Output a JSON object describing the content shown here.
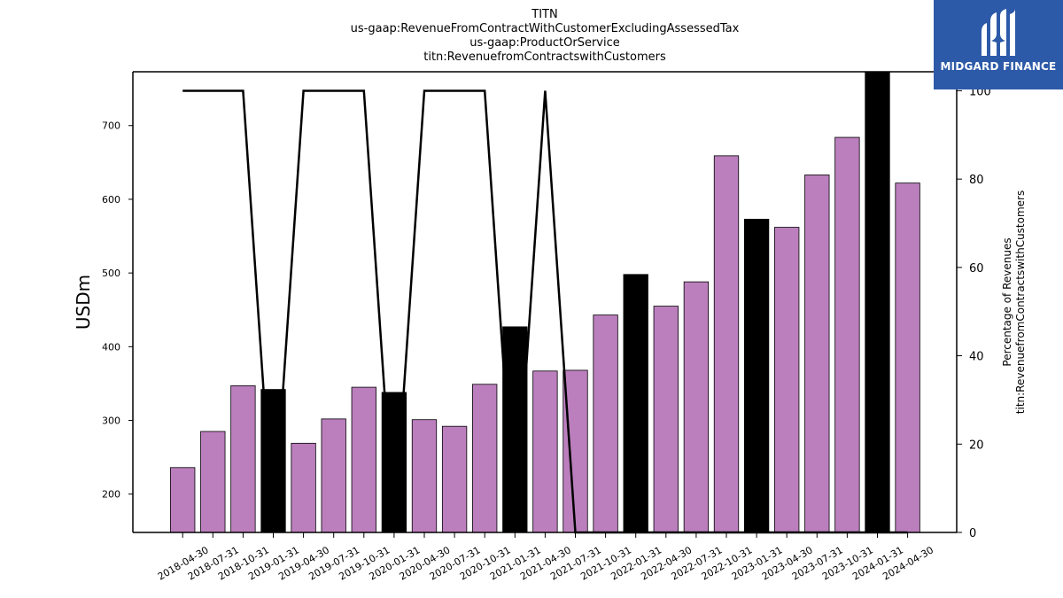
{
  "chart_data": {
    "type": "bar",
    "title_lines": [
      "TITN",
      "us-gaap:RevenueFromContractWithCustomerExcludingAssessedTax",
      "us-gaap:ProductOrService",
      "titn:RevenuefromContractswithCustomers"
    ],
    "ylabel": "USDm",
    "ylabel_right": [
      "Percentage of Revenues",
      "titn:RevenuefromContractswithCustomers"
    ],
    "ylim": [
      148,
      773
    ],
    "yticks": [
      200,
      300,
      400,
      500,
      600,
      700
    ],
    "ylim_right": [
      0,
      104.3
    ],
    "yticks_right": [
      0,
      20,
      40,
      60,
      80,
      100
    ],
    "categories": [
      "2018-04-30",
      "2018-07-31",
      "2018-10-31",
      "2019-01-31",
      "2019-04-30",
      "2019-07-31",
      "2019-10-31",
      "2020-01-31",
      "2020-04-30",
      "2020-07-31",
      "2020-10-31",
      "2021-01-31",
      "2021-04-30",
      "2021-07-31",
      "2021-10-31",
      "2022-01-31",
      "2022-04-30",
      "2022-07-31",
      "2022-10-31",
      "2023-01-31",
      "2023-04-30",
      "2023-07-31",
      "2023-10-31",
      "2024-01-31",
      "2024-04-30"
    ],
    "values": [
      236,
      285,
      347,
      342,
      269,
      302,
      345,
      338,
      301,
      292,
      349,
      427,
      367,
      368,
      443,
      498,
      455,
      488,
      659,
      573,
      562,
      633,
      684,
      775,
      622
    ],
    "highlight": [
      false,
      false,
      false,
      true,
      false,
      false,
      false,
      true,
      false,
      false,
      false,
      true,
      false,
      false,
      false,
      true,
      false,
      false,
      false,
      true,
      false,
      false,
      false,
      true,
      false
    ],
    "line_percent": [
      100,
      100,
      100,
      0,
      100,
      100,
      100,
      0,
      100,
      100,
      100,
      0,
      100,
      0,
      0,
      0,
      0,
      0,
      0,
      0,
      0,
      0,
      0,
      0,
      0
    ],
    "bar_color": "#bb7fbd",
    "highlight_color": "#000000",
    "line_color": "#000000",
    "grid": false,
    "legend": "none"
  },
  "logo": {
    "text": "MIDGARD FINANCE",
    "background": "#2d5aa8"
  }
}
